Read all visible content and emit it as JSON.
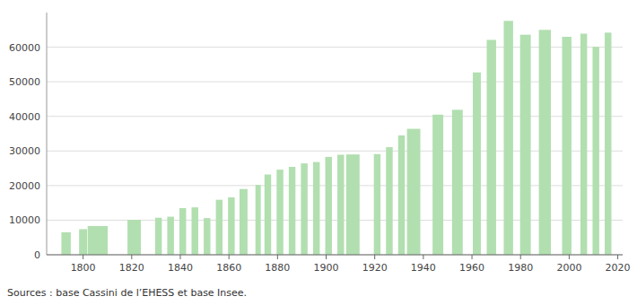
{
  "chart_data": {
    "type": "bar",
    "x": [
      1793,
      1800,
      1806,
      1821,
      1831,
      1836,
      1841,
      1846,
      1851,
      1856,
      1861,
      1866,
      1872,
      1876,
      1881,
      1886,
      1891,
      1896,
      1901,
      1906,
      1911,
      1921,
      1926,
      1931,
      1936,
      1946,
      1954,
      1962,
      1968,
      1975,
      1982,
      1990,
      1999,
      2006,
      2011,
      2016
    ],
    "values": [
      6500,
      7400,
      8300,
      10100,
      10700,
      11000,
      13500,
      13700,
      10600,
      15900,
      16600,
      19000,
      20200,
      23200,
      24600,
      25400,
      26400,
      26800,
      28300,
      28900,
      29000,
      29100,
      31100,
      34500,
      36400,
      40500,
      41900,
      52700,
      62100,
      67600,
      63600,
      65000,
      63000,
      63900,
      60100,
      64200
    ],
    "color": "#b2dfb0",
    "xlim": [
      1785,
      2022
    ],
    "xticks": [
      1800,
      1820,
      1840,
      1860,
      1880,
      1900,
      1920,
      1940,
      1960,
      1980,
      2000,
      2020
    ],
    "ylim": [
      0,
      70000
    ],
    "yticks": [
      0,
      10000,
      20000,
      30000,
      40000,
      50000,
      60000
    ],
    "grid": true,
    "annotations": [
      "Sources : base Cassini de l’EHESS et base Insee."
    ]
  }
}
